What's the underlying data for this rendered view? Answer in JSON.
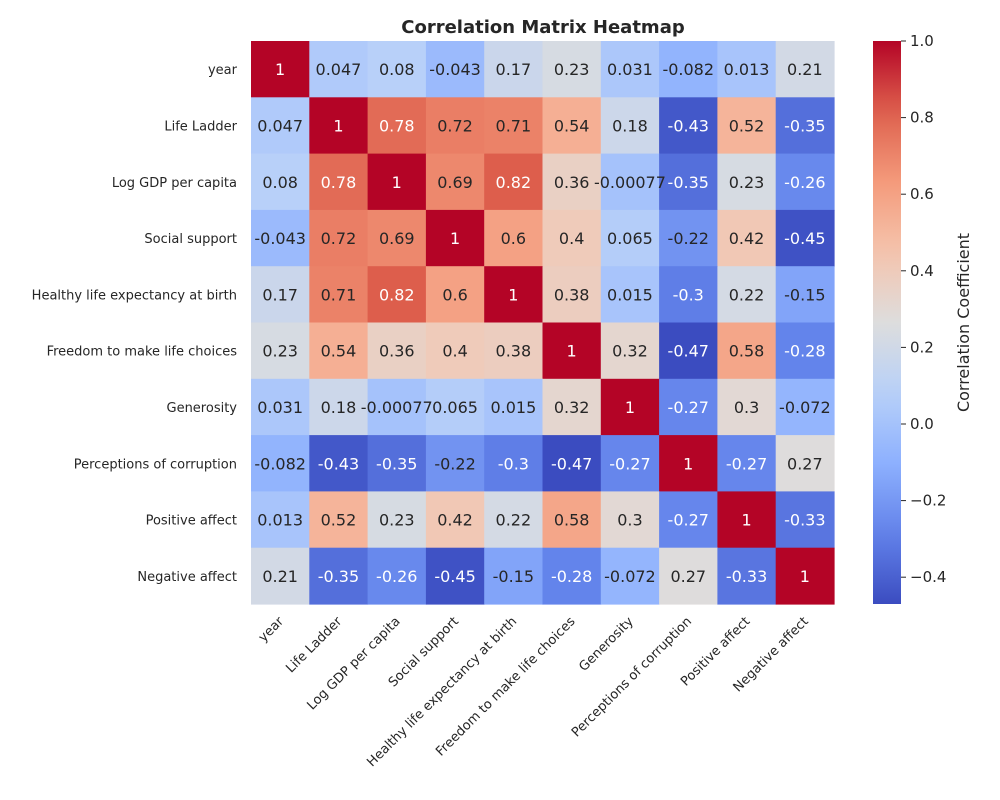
{
  "chart_data": {
    "type": "heatmap",
    "title": "Correlation Matrix Heatmap",
    "rows": [
      "year",
      "Life Ladder",
      "Log GDP per capita",
      "Social support",
      "Healthy life expectancy at birth",
      "Freedom to make life choices",
      "Generosity",
      "Perceptions of corruption",
      "Positive affect",
      "Negative affect"
    ],
    "columns": [
      "year",
      "Life Ladder",
      "Log GDP per capita",
      "Social support",
      "Healthy life expectancy at birth",
      "Freedom to make life choices",
      "Generosity",
      "Perceptions of corruption",
      "Positive affect",
      "Negative affect"
    ],
    "values": [
      [
        1,
        0.047,
        0.08,
        -0.043,
        0.17,
        0.23,
        0.031,
        -0.082,
        0.013,
        0.21
      ],
      [
        0.047,
        1,
        0.78,
        0.72,
        0.71,
        0.54,
        0.18,
        -0.43,
        0.52,
        -0.35
      ],
      [
        0.08,
        0.78,
        1,
        0.69,
        0.82,
        0.36,
        -0.00077,
        -0.35,
        0.23,
        -0.26
      ],
      [
        -0.043,
        0.72,
        0.69,
        1,
        0.6,
        0.4,
        0.065,
        -0.22,
        0.42,
        -0.45
      ],
      [
        0.17,
        0.71,
        0.82,
        0.6,
        1,
        0.38,
        0.015,
        -0.3,
        0.22,
        -0.15
      ],
      [
        0.23,
        0.54,
        0.36,
        0.4,
        0.38,
        1,
        0.32,
        -0.47,
        0.58,
        -0.28
      ],
      [
        0.031,
        0.18,
        -0.00077,
        0.065,
        0.015,
        0.32,
        1,
        -0.27,
        0.3,
        -0.072
      ],
      [
        -0.082,
        -0.43,
        -0.35,
        -0.22,
        -0.3,
        -0.47,
        -0.27,
        1,
        -0.27,
        0.27
      ],
      [
        0.013,
        0.52,
        0.23,
        0.42,
        0.22,
        0.58,
        0.3,
        -0.27,
        1,
        -0.33
      ],
      [
        0.21,
        -0.35,
        -0.26,
        -0.45,
        -0.15,
        -0.28,
        -0.072,
        0.27,
        -0.33,
        1
      ]
    ],
    "value_labels": [
      [
        "1",
        "0.047",
        "0.08",
        "-0.043",
        "0.17",
        "0.23",
        "0.031",
        "-0.082",
        "0.013",
        "0.21"
      ],
      [
        "0.047",
        "1",
        "0.78",
        "0.72",
        "0.71",
        "0.54",
        "0.18",
        "-0.43",
        "0.52",
        "-0.35"
      ],
      [
        "0.08",
        "0.78",
        "1",
        "0.69",
        "0.82",
        "0.36",
        "-0.00077",
        "-0.35",
        "0.23",
        "-0.26"
      ],
      [
        "-0.043",
        "0.72",
        "0.69",
        "1",
        "0.6",
        "0.4",
        "0.065",
        "-0.22",
        "0.42",
        "-0.45"
      ],
      [
        "0.17",
        "0.71",
        "0.82",
        "0.6",
        "1",
        "0.38",
        "0.015",
        "-0.3",
        "0.22",
        "-0.15"
      ],
      [
        "0.23",
        "0.54",
        "0.36",
        "0.4",
        "0.38",
        "1",
        "0.32",
        "-0.47",
        "0.58",
        "-0.28"
      ],
      [
        "0.031",
        "0.18",
        "-0.00077",
        "0.065",
        "0.015",
        "0.32",
        "1",
        "-0.27",
        "0.3",
        "-0.072"
      ],
      [
        "-0.082",
        "-0.43",
        "-0.35",
        "-0.22",
        "-0.3",
        "-0.47",
        "-0.27",
        "1",
        "-0.27",
        "0.27"
      ],
      [
        "0.013",
        "0.52",
        "0.23",
        "0.42",
        "0.22",
        "0.58",
        "0.3",
        "-0.27",
        "1",
        "-0.33"
      ],
      [
        "0.21",
        "-0.35",
        "-0.26",
        "-0.45",
        "-0.15",
        "-0.28",
        "-0.072",
        "0.27",
        "-0.33",
        "1"
      ]
    ],
    "colormap": "coolwarm",
    "colorbar": {
      "label": "Correlation Coefficient",
      "range": [
        -0.47,
        1
      ],
      "ticks": [
        -0.4,
        -0.2,
        0.0,
        0.2,
        0.4,
        0.6,
        0.8,
        1.0
      ],
      "tick_labels": [
        "−0.4",
        "−0.2",
        "0.0",
        "0.2",
        "0.4",
        "0.6",
        "0.8",
        "1.0"
      ]
    },
    "grid": false,
    "legend": "colorbar-right"
  }
}
